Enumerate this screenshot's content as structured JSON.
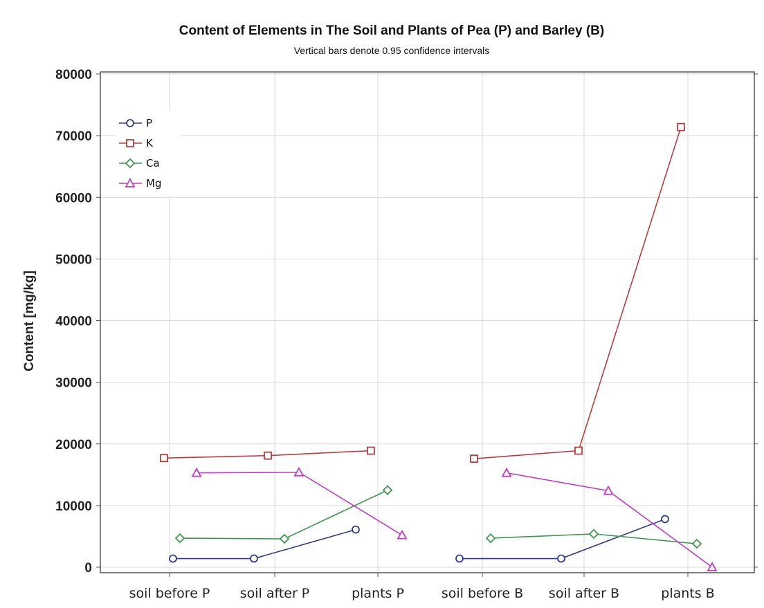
{
  "chart_data": {
    "type": "line",
    "title": "Content of Elements in The Soil and Plants of Pea (P) and Barley (B)",
    "subtitle": "Vertical bars denote 0.95 confidence intervals",
    "ylabel": "Content [mg/kg]",
    "xlabel": "",
    "categories": [
      "soil before P",
      "soil after P",
      "plants P",
      "soil before B",
      "soil after B",
      "plants B"
    ],
    "ylim": [
      0,
      80000
    ],
    "yticks": [
      "0",
      "10000",
      "20000",
      "30000",
      "40000",
      "50000",
      "60000",
      "70000",
      "80000"
    ],
    "grid": true,
    "legend_position": "top-left",
    "series_groups": [
      [
        0,
        1,
        2
      ],
      [
        3,
        4,
        5
      ]
    ],
    "series": [
      {
        "name": "P",
        "color": "#2f3a8f",
        "marker": "circle",
        "values": [
          1400,
          1400,
          6100,
          1400,
          1400,
          7800
        ]
      },
      {
        "name": "K",
        "color": "#c0393b",
        "marker": "square",
        "values": [
          17700,
          18100,
          18900,
          17600,
          18900,
          71400
        ]
      },
      {
        "name": "Ca",
        "color": "#3a9a4a",
        "marker": "diamond",
        "values": [
          4700,
          4600,
          12500,
          4700,
          5400,
          3800
        ]
      },
      {
        "name": "Mg",
        "color": "#c437c8",
        "marker": "triangle",
        "values": [
          15300,
          15400,
          5200,
          15300,
          12400,
          0
        ]
      }
    ]
  }
}
